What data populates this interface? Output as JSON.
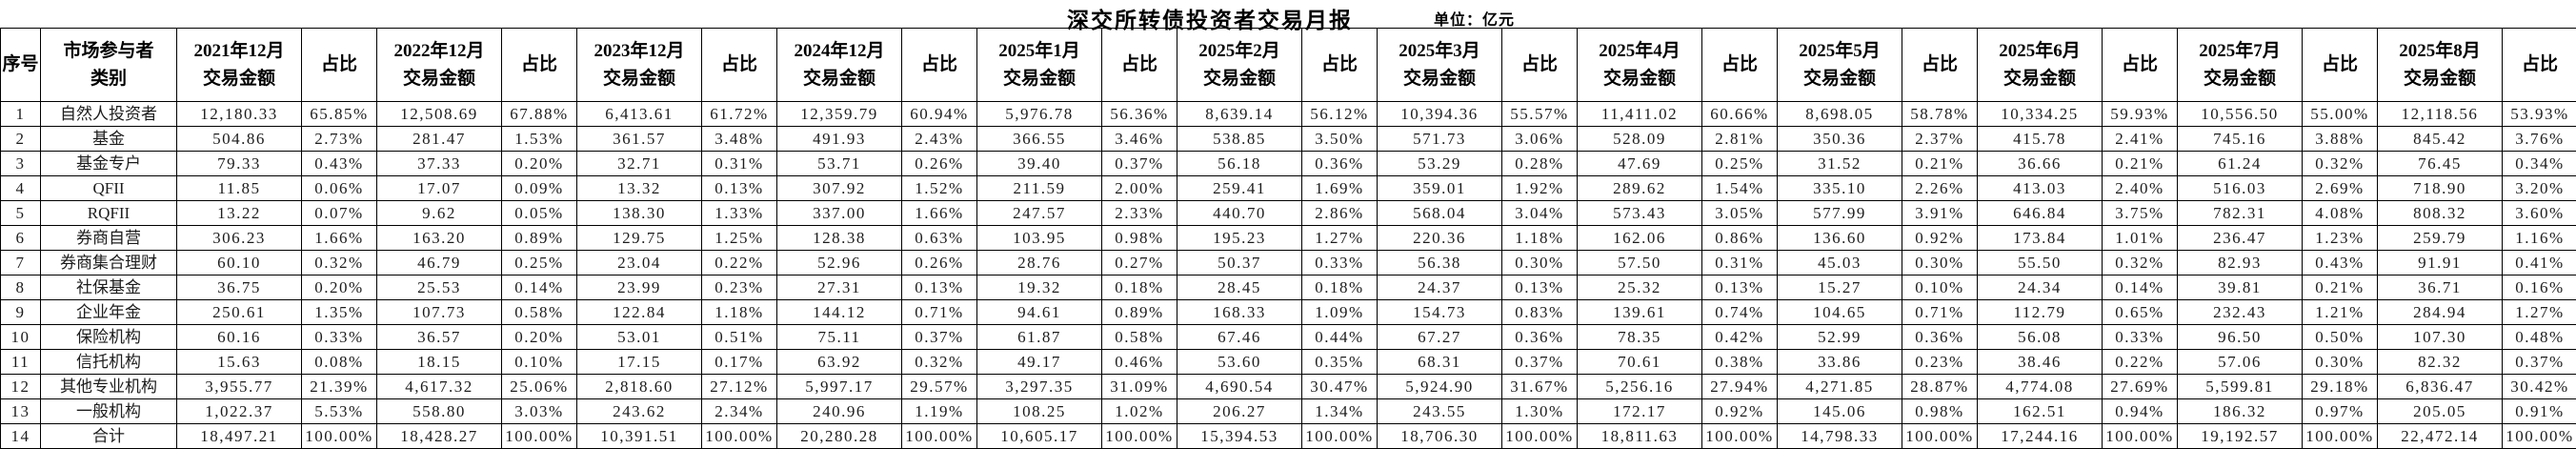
{
  "title": "深交所转债投资者交易月报",
  "unit_label": "单位：亿元",
  "colors": {
    "background": "#ffffff",
    "border": "#000000",
    "text": "#000000"
  },
  "table": {
    "col_headers": {
      "index": "序号",
      "category_line1": "市场参与者",
      "category_line2": "类别",
      "amount_suffix": "交易金额",
      "ratio": "占比",
      "months": [
        "2021年12月",
        "2022年12月",
        "2023年12月",
        "2024年12月",
        "2025年1月",
        "2025年2月",
        "2025年3月",
        "2025年4月",
        "2025年5月",
        "2025年6月",
        "2025年7月",
        "2025年8月"
      ]
    },
    "rows": [
      {
        "no": "1",
        "name": "自然人投资者",
        "cells": [
          "12,180.33",
          "65.85%",
          "12,508.69",
          "67.88%",
          "6,413.61",
          "61.72%",
          "12,359.79",
          "60.94%",
          "5,976.78",
          "56.36%",
          "8,639.14",
          "56.12%",
          "10,394.36",
          "55.57%",
          "11,411.02",
          "60.66%",
          "8,698.05",
          "58.78%",
          "10,334.25",
          "59.93%",
          "10,556.50",
          "55.00%",
          "12,118.56",
          "53.93%"
        ]
      },
      {
        "no": "2",
        "name": "基金",
        "cells": [
          "504.86",
          "2.73%",
          "281.47",
          "1.53%",
          "361.57",
          "3.48%",
          "491.93",
          "2.43%",
          "366.55",
          "3.46%",
          "538.85",
          "3.50%",
          "571.73",
          "3.06%",
          "528.09",
          "2.81%",
          "350.36",
          "2.37%",
          "415.78",
          "2.41%",
          "745.16",
          "3.88%",
          "845.42",
          "3.76%"
        ]
      },
      {
        "no": "3",
        "name": "基金专户",
        "cells": [
          "79.33",
          "0.43%",
          "37.33",
          "0.20%",
          "32.71",
          "0.31%",
          "53.71",
          "0.26%",
          "39.40",
          "0.37%",
          "56.18",
          "0.36%",
          "53.29",
          "0.28%",
          "47.69",
          "0.25%",
          "31.52",
          "0.21%",
          "36.66",
          "0.21%",
          "61.24",
          "0.32%",
          "76.45",
          "0.34%"
        ]
      },
      {
        "no": "4",
        "name": "QFII",
        "cells": [
          "11.85",
          "0.06%",
          "17.07",
          "0.09%",
          "13.32",
          "0.13%",
          "307.92",
          "1.52%",
          "211.59",
          "2.00%",
          "259.41",
          "1.69%",
          "359.01",
          "1.92%",
          "289.62",
          "1.54%",
          "335.10",
          "2.26%",
          "413.03",
          "2.40%",
          "516.03",
          "2.69%",
          "718.90",
          "3.20%"
        ]
      },
      {
        "no": "5",
        "name": "RQFII",
        "cells": [
          "13.22",
          "0.07%",
          "9.62",
          "0.05%",
          "138.30",
          "1.33%",
          "337.00",
          "1.66%",
          "247.57",
          "2.33%",
          "440.70",
          "2.86%",
          "568.04",
          "3.04%",
          "573.43",
          "3.05%",
          "577.99",
          "3.91%",
          "646.84",
          "3.75%",
          "782.31",
          "4.08%",
          "808.32",
          "3.60%"
        ]
      },
      {
        "no": "6",
        "name": "券商自营",
        "cells": [
          "306.23",
          "1.66%",
          "163.20",
          "0.89%",
          "129.75",
          "1.25%",
          "128.38",
          "0.63%",
          "103.95",
          "0.98%",
          "195.23",
          "1.27%",
          "220.36",
          "1.18%",
          "162.06",
          "0.86%",
          "136.60",
          "0.92%",
          "173.84",
          "1.01%",
          "236.47",
          "1.23%",
          "259.79",
          "1.16%"
        ]
      },
      {
        "no": "7",
        "name": "券商集合理财",
        "cells": [
          "60.10",
          "0.32%",
          "46.79",
          "0.25%",
          "23.04",
          "0.22%",
          "52.96",
          "0.26%",
          "28.76",
          "0.27%",
          "50.37",
          "0.33%",
          "56.38",
          "0.30%",
          "57.50",
          "0.31%",
          "45.03",
          "0.30%",
          "55.50",
          "0.32%",
          "82.93",
          "0.43%",
          "91.91",
          "0.41%"
        ]
      },
      {
        "no": "8",
        "name": "社保基金",
        "cells": [
          "36.75",
          "0.20%",
          "25.53",
          "0.14%",
          "23.99",
          "0.23%",
          "27.31",
          "0.13%",
          "19.32",
          "0.18%",
          "28.45",
          "0.18%",
          "24.37",
          "0.13%",
          "25.32",
          "0.13%",
          "15.27",
          "0.10%",
          "24.34",
          "0.14%",
          "39.81",
          "0.21%",
          "36.71",
          "0.16%"
        ]
      },
      {
        "no": "9",
        "name": "企业年金",
        "cells": [
          "250.61",
          "1.35%",
          "107.73",
          "0.58%",
          "122.84",
          "1.18%",
          "144.12",
          "0.71%",
          "94.61",
          "0.89%",
          "168.33",
          "1.09%",
          "154.73",
          "0.83%",
          "139.61",
          "0.74%",
          "104.65",
          "0.71%",
          "112.79",
          "0.65%",
          "232.43",
          "1.21%",
          "284.94",
          "1.27%"
        ]
      },
      {
        "no": "10",
        "name": "保险机构",
        "cells": [
          "60.16",
          "0.33%",
          "36.57",
          "0.20%",
          "53.01",
          "0.51%",
          "75.11",
          "0.37%",
          "61.87",
          "0.58%",
          "67.46",
          "0.44%",
          "67.27",
          "0.36%",
          "78.35",
          "0.42%",
          "52.99",
          "0.36%",
          "56.08",
          "0.33%",
          "96.50",
          "0.50%",
          "107.30",
          "0.48%"
        ]
      },
      {
        "no": "11",
        "name": "信托机构",
        "cells": [
          "15.63",
          "0.08%",
          "18.15",
          "0.10%",
          "17.15",
          "0.17%",
          "63.92",
          "0.32%",
          "49.17",
          "0.46%",
          "53.60",
          "0.35%",
          "68.31",
          "0.37%",
          "70.61",
          "0.38%",
          "33.86",
          "0.23%",
          "38.46",
          "0.22%",
          "57.06",
          "0.30%",
          "82.32",
          "0.37%"
        ]
      },
      {
        "no": "12",
        "name": "其他专业机构",
        "cells": [
          "3,955.77",
          "21.39%",
          "4,617.32",
          "25.06%",
          "2,818.60",
          "27.12%",
          "5,997.17",
          "29.57%",
          "3,297.35",
          "31.09%",
          "4,690.54",
          "30.47%",
          "5,924.90",
          "31.67%",
          "5,256.16",
          "27.94%",
          "4,271.85",
          "28.87%",
          "4,774.08",
          "27.69%",
          "5,599.81",
          "29.18%",
          "6,836.47",
          "30.42%"
        ]
      },
      {
        "no": "13",
        "name": "一般机构",
        "cells": [
          "1,022.37",
          "5.53%",
          "558.80",
          "3.03%",
          "243.62",
          "2.34%",
          "240.96",
          "1.19%",
          "108.25",
          "1.02%",
          "206.27",
          "1.34%",
          "243.55",
          "1.30%",
          "172.17",
          "0.92%",
          "145.06",
          "0.98%",
          "162.51",
          "0.94%",
          "186.32",
          "0.97%",
          "205.05",
          "0.91%"
        ]
      },
      {
        "no": "14",
        "name": "合计",
        "cells": [
          "18,497.21",
          "100.00%",
          "18,428.27",
          "100.00%",
          "10,391.51",
          "100.00%",
          "20,280.28",
          "100.00%",
          "10,605.17",
          "100.00%",
          "15,394.53",
          "100.00%",
          "18,706.30",
          "100.00%",
          "18,811.63",
          "100.00%",
          "14,798.33",
          "100.00%",
          "17,244.16",
          "100.00%",
          "19,192.57",
          "100.00%",
          "22,472.14",
          "100.00%"
        ]
      }
    ]
  }
}
